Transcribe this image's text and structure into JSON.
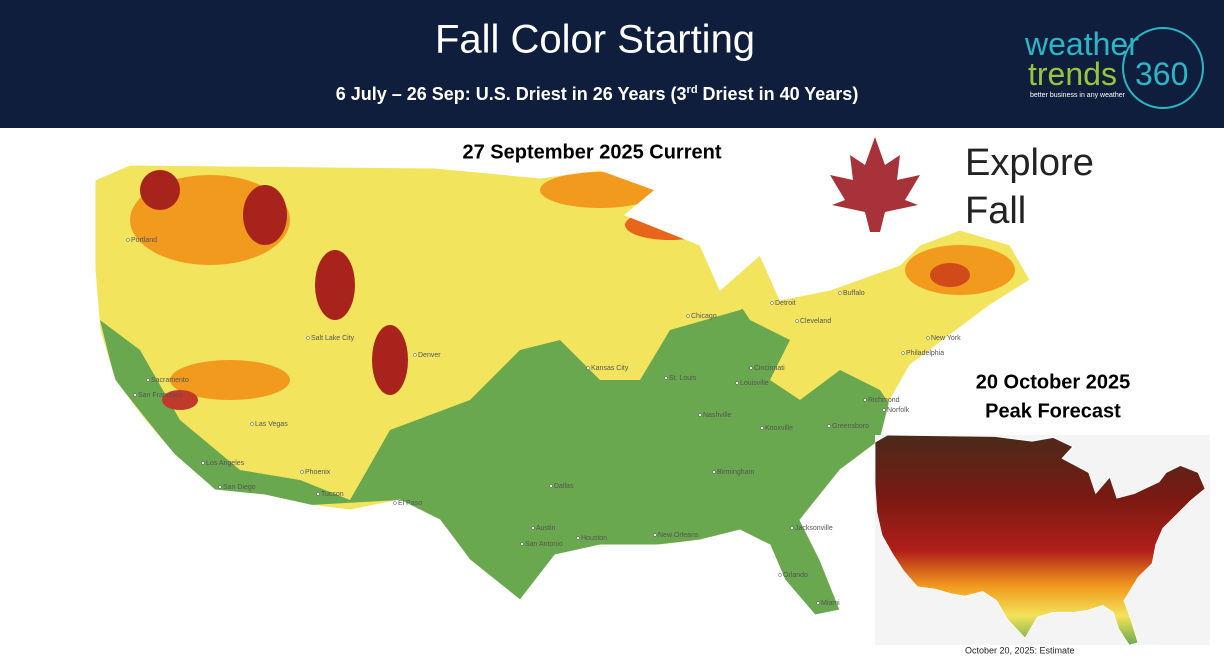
{
  "header": {
    "title": "Fall Color Starting",
    "subtitle": {
      "before": "6 July – 26 Sep:  U.S. Driest in 26 Years (3",
      "sup": "rd",
      "after": " Driest in 40 Years)"
    }
  },
  "logo": {
    "line1": "weather",
    "line2": "trends",
    "number": "360",
    "tagline": "better business in any weather"
  },
  "main_map": {
    "title": "27 September 2025 Current",
    "cities": [
      "Portland",
      "Sacramento",
      "San Francisco",
      "Los Angeles",
      "San Diego",
      "Las Vegas",
      "Phoenix",
      "Tucson",
      "El Paso",
      "Salt Lake City",
      "Denver",
      "Kansas City",
      "Dallas",
      "Austin",
      "San Antonio",
      "Houston",
      "New Orleans",
      "Birmingham",
      "St. Louis",
      "Chicago",
      "Detroit",
      "Cleveland",
      "Cincinnati",
      "Louisville",
      "Nashville",
      "Knoxville",
      "Greensboro",
      "Richmond",
      "Norfolk",
      "Philadelphia",
      "New York",
      "Buffalo",
      "Jacksonville",
      "Orlando",
      "Miami"
    ]
  },
  "explore": {
    "line1": "Explore",
    "line2": "Fall"
  },
  "inset_map": {
    "title": "20 October 2025",
    "subtitle": "Peak Forecast",
    "caption": "October 20, 2025: Estimate"
  }
}
